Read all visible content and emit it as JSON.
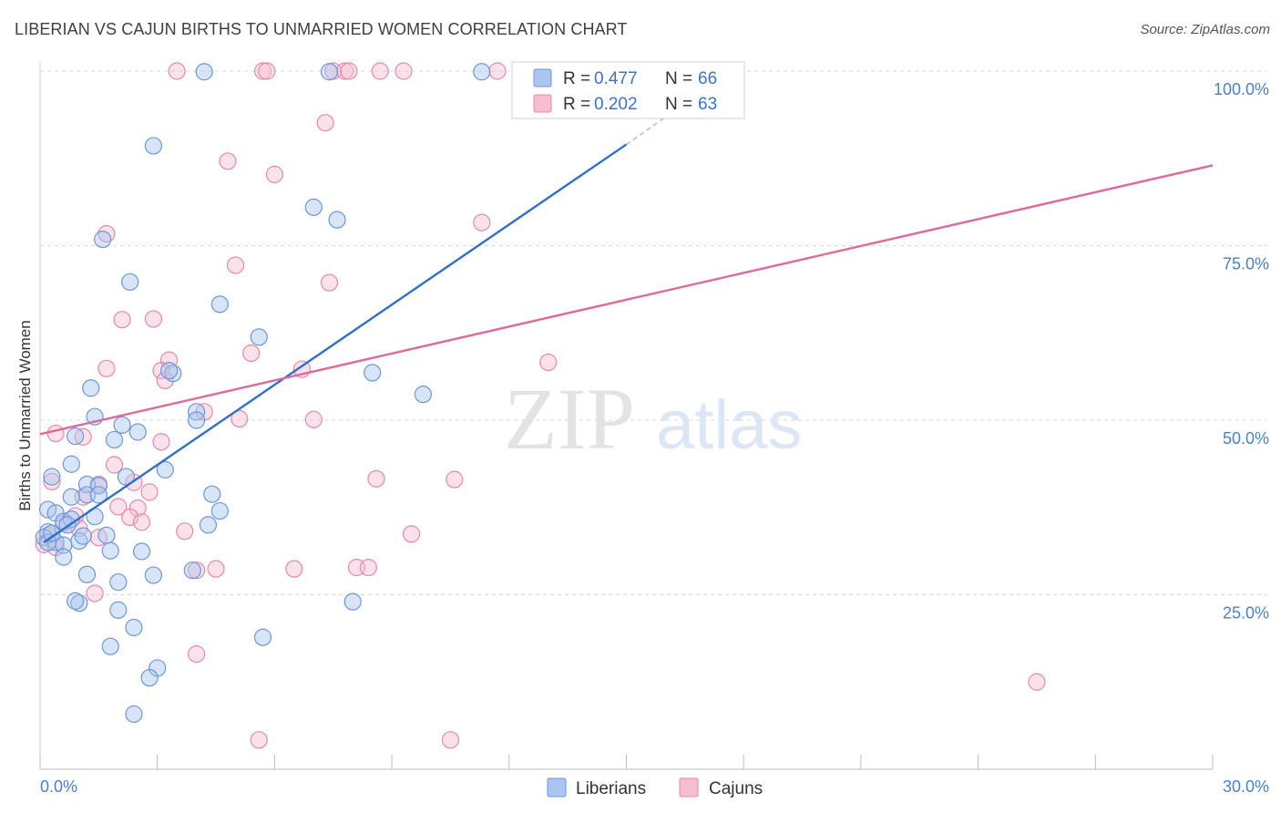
{
  "title": "LIBERIAN VS CAJUN BIRTHS TO UNMARRIED WOMEN CORRELATION CHART",
  "source": "Source: ZipAtlas.com",
  "watermark": {
    "zip": "ZIP",
    "atlas": "atlas"
  },
  "colors": {
    "liberians_fill": "#a9c6f0",
    "liberians_stroke": "#6c98d8",
    "liberians_line": "#2f6fcb",
    "cajuns_fill": "#f6bcd0",
    "cajuns_stroke": "#e58aa9",
    "cajuns_line": "#e0689a",
    "tick": "#4a7fd0",
    "grid": "#d9d9d9"
  },
  "chart_data": {
    "type": "scatter",
    "title": "LIBERIAN VS CAJUN BIRTHS TO UNMARRIED WOMEN CORRELATION CHART",
    "xlabel": "",
    "ylabel": "Births to Unmarried Women",
    "xlim": [
      0,
      30
    ],
    "ylim": [
      0,
      100
    ],
    "x_tick_labels": [
      "0.0%",
      "30.0%"
    ],
    "y_ticks": [
      25,
      50,
      75,
      100
    ],
    "y_tick_labels": [
      "25.0%",
      "50.0%",
      "75.0%",
      "100.0%"
    ],
    "grid": true,
    "legend": [
      {
        "series": "Liberians",
        "r_label": "R =",
        "r_value": "0.477",
        "n_label": "N =",
        "n_value": "66"
      },
      {
        "series": "Cajuns",
        "r_label": "R =",
        "r_value": "0.202",
        "n_label": "N =",
        "n_value": "63"
      }
    ],
    "series": [
      {
        "name": "Liberians",
        "trend": {
          "x": [
            0.1,
            15.0
          ],
          "y": [
            32.5,
            89.5
          ],
          "dashed_to": [
            16.8,
            96.5
          ]
        },
        "points": [
          [
            4.2,
            99.9
          ],
          [
            7.4,
            99.9
          ],
          [
            11.3,
            99.9
          ],
          [
            2.9,
            89.3
          ],
          [
            7.0,
            80.5
          ],
          [
            7.6,
            78.7
          ],
          [
            1.6,
            75.9
          ],
          [
            2.3,
            69.8
          ],
          [
            4.6,
            66.6
          ],
          [
            5.6,
            61.9
          ],
          [
            3.4,
            56.7
          ],
          [
            8.5,
            56.8
          ],
          [
            3.3,
            57.1
          ],
          [
            1.3,
            54.6
          ],
          [
            9.8,
            53.7
          ],
          [
            1.4,
            50.5
          ],
          [
            4.0,
            51.2
          ],
          [
            2.1,
            49.3
          ],
          [
            4.0,
            50.0
          ],
          [
            2.5,
            48.3
          ],
          [
            0.9,
            47.7
          ],
          [
            1.9,
            47.2
          ],
          [
            0.8,
            43.7
          ],
          [
            3.2,
            42.9
          ],
          [
            0.3,
            41.9
          ],
          [
            2.2,
            41.9
          ],
          [
            1.2,
            40.8
          ],
          [
            1.5,
            40.6
          ],
          [
            1.2,
            39.3
          ],
          [
            1.5,
            39.3
          ],
          [
            4.4,
            39.4
          ],
          [
            0.8,
            39.0
          ],
          [
            0.2,
            37.2
          ],
          [
            0.4,
            36.7
          ],
          [
            4.6,
            37.0
          ],
          [
            1.4,
            36.2
          ],
          [
            0.6,
            35.5
          ],
          [
            0.8,
            35.8
          ],
          [
            4.3,
            35.0
          ],
          [
            0.2,
            34.0
          ],
          [
            1.7,
            33.5
          ],
          [
            0.1,
            33.2
          ],
          [
            1.0,
            32.7
          ],
          [
            0.4,
            32.5
          ],
          [
            0.6,
            32.1
          ],
          [
            1.8,
            31.3
          ],
          [
            2.6,
            31.2
          ],
          [
            0.6,
            30.4
          ],
          [
            3.9,
            28.5
          ],
          [
            1.2,
            27.9
          ],
          [
            2.9,
            27.8
          ],
          [
            2.0,
            26.8
          ],
          [
            8.0,
            24.0
          ],
          [
            1.0,
            23.8
          ],
          [
            0.9,
            24.1
          ],
          [
            2.0,
            22.8
          ],
          [
            2.4,
            20.3
          ],
          [
            5.7,
            18.9
          ],
          [
            1.8,
            17.6
          ],
          [
            3.0,
            14.5
          ],
          [
            2.8,
            13.1
          ],
          [
            2.4,
            7.9
          ],
          [
            0.2,
            32.5
          ],
          [
            0.7,
            35.0
          ],
          [
            0.3,
            33.8
          ],
          [
            1.1,
            33.4
          ]
        ]
      },
      {
        "name": "Cajuns",
        "trend": {
          "x": [
            0.0,
            30.0
          ],
          "y": [
            48.0,
            86.5
          ]
        },
        "points": [
          [
            3.5,
            100.0
          ],
          [
            5.7,
            100.0
          ],
          [
            5.8,
            100.0
          ],
          [
            7.5,
            100.0
          ],
          [
            7.8,
            100.0
          ],
          [
            7.9,
            100.0
          ],
          [
            8.7,
            100.0
          ],
          [
            9.3,
            100.0
          ],
          [
            11.7,
            100.0
          ],
          [
            12.6,
            100.0
          ],
          [
            7.3,
            92.6
          ],
          [
            4.8,
            87.1
          ],
          [
            6.0,
            85.2
          ],
          [
            11.3,
            78.3
          ],
          [
            1.7,
            76.7
          ],
          [
            5.0,
            72.2
          ],
          [
            7.4,
            69.7
          ],
          [
            2.1,
            64.4
          ],
          [
            2.9,
            64.5
          ],
          [
            5.4,
            59.6
          ],
          [
            3.3,
            58.6
          ],
          [
            13.0,
            58.3
          ],
          [
            1.7,
            57.4
          ],
          [
            6.7,
            57.3
          ],
          [
            3.1,
            57.1
          ],
          [
            3.2,
            55.7
          ],
          [
            4.2,
            51.2
          ],
          [
            5.1,
            50.2
          ],
          [
            7.0,
            50.1
          ],
          [
            0.4,
            48.1
          ],
          [
            1.1,
            47.6
          ],
          [
            3.1,
            46.9
          ],
          [
            1.9,
            43.6
          ],
          [
            8.6,
            41.6
          ],
          [
            10.6,
            41.5
          ],
          [
            0.3,
            41.2
          ],
          [
            2.4,
            41.1
          ],
          [
            1.5,
            40.8
          ],
          [
            2.8,
            39.7
          ],
          [
            1.1,
            39.0
          ],
          [
            2.0,
            37.6
          ],
          [
            2.5,
            37.4
          ],
          [
            2.3,
            36.1
          ],
          [
            0.9,
            36.3
          ],
          [
            2.6,
            35.4
          ],
          [
            0.6,
            35.2
          ],
          [
            1.0,
            34.5
          ],
          [
            3.7,
            34.1
          ],
          [
            9.5,
            33.7
          ],
          [
            1.5,
            33.2
          ],
          [
            0.1,
            32.2
          ],
          [
            0.4,
            31.8
          ],
          [
            4.0,
            28.5
          ],
          [
            4.5,
            28.7
          ],
          [
            6.5,
            28.7
          ],
          [
            8.1,
            28.9
          ],
          [
            8.4,
            28.9
          ],
          [
            1.4,
            25.2
          ],
          [
            4.0,
            16.5
          ],
          [
            25.5,
            12.5
          ],
          [
            5.6,
            4.2
          ],
          [
            10.5,
            4.2
          ],
          [
            0.2,
            33.5
          ]
        ]
      }
    ]
  },
  "bottom_legend": [
    "Liberians",
    "Cajuns"
  ]
}
